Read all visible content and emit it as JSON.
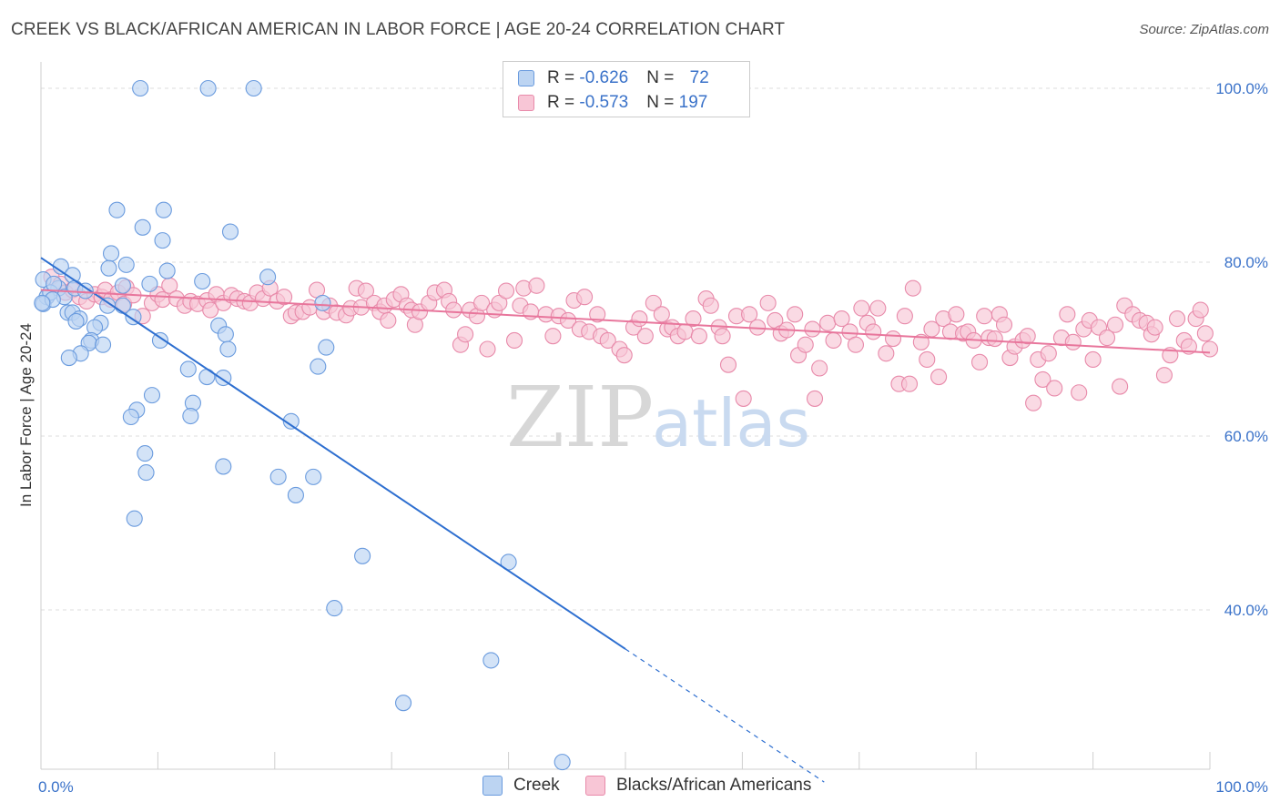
{
  "header": {
    "title": "CREEK VS BLACK/AFRICAN AMERICAN IN LABOR FORCE | AGE 20-24 CORRELATION CHART",
    "source": "Source: ZipAtlas.com"
  },
  "legend": {
    "rows": [
      {
        "r_label": "R = ",
        "r_value": "-0.626",
        "n_label": "N = ",
        "n_value": "72"
      },
      {
        "r_label": "R = ",
        "r_value": "-0.573",
        "n_label": "N = ",
        "n_value": "197"
      }
    ]
  },
  "watermark": {
    "zip": "ZIP",
    "atlas": "atlas"
  },
  "colors": {
    "creek_fill": "#bcd4f2",
    "creek_stroke": "#6a9bde",
    "creek_line": "#2e6fd0",
    "black_fill": "#f8c6d6",
    "black_stroke": "#e88aaa",
    "black_line": "#e8769c",
    "grid": "#dddddd",
    "axis_label": "#3a72c9"
  },
  "chart_data": {
    "type": "scatter",
    "title": "CREEK VS BLACK/AFRICAN AMERICAN IN LABOR FORCE | AGE 20-24 CORRELATION CHART",
    "ylabel": "In Labor Force | Age 20-24",
    "xlabel": "",
    "x_tick_labels": [
      "0.0%",
      "100.0%"
    ],
    "y_tick_labels": [
      "100.0%",
      "80.0%",
      "60.0%",
      "40.0%"
    ],
    "y_ticks": [
      100,
      80,
      60,
      40
    ],
    "xlim": [
      0,
      100
    ],
    "ylim": [
      20,
      102
    ],
    "grid": "horizontal dashed",
    "legend_position": "bottom",
    "series": [
      {
        "name": "Creek",
        "r": -0.626,
        "n": 72,
        "trend": {
          "x0": 0,
          "y0": 80.5,
          "x1": 50,
          "y1": 35.5,
          "dashed_to_x": 67
        },
        "points": [
          [
            8.5,
            100
          ],
          [
            14.3,
            100
          ],
          [
            18.2,
            100
          ],
          [
            6.5,
            86
          ],
          [
            10.5,
            86
          ],
          [
            8.7,
            84
          ],
          [
            10.4,
            82.5
          ],
          [
            16.2,
            83.5
          ],
          [
            6.0,
            81
          ],
          [
            7.3,
            79.7
          ],
          [
            5.8,
            79.3
          ],
          [
            10.8,
            79
          ],
          [
            1.7,
            79.5
          ],
          [
            0.2,
            78
          ],
          [
            1.5,
            77
          ],
          [
            2.7,
            78.5
          ],
          [
            7.0,
            77.3
          ],
          [
            9.3,
            77.5
          ],
          [
            13.8,
            77.8
          ],
          [
            19.4,
            78.3
          ],
          [
            0.5,
            76
          ],
          [
            0.8,
            76.5
          ],
          [
            1.1,
            77.5
          ],
          [
            2.0,
            76
          ],
          [
            2.9,
            77
          ],
          [
            3.8,
            76.7
          ],
          [
            0.2,
            75.2
          ],
          [
            1.0,
            75.7
          ],
          [
            2.3,
            74.2
          ],
          [
            2.7,
            74.2
          ],
          [
            5.7,
            75
          ],
          [
            3.3,
            73.5
          ],
          [
            3.0,
            73.2
          ],
          [
            7.0,
            75
          ],
          [
            7.9,
            73.7
          ],
          [
            5.1,
            73
          ],
          [
            4.6,
            72.5
          ],
          [
            15.2,
            72.7
          ],
          [
            24.1,
            75.3
          ],
          [
            10.2,
            71
          ],
          [
            4.3,
            71
          ],
          [
            4.1,
            70.7
          ],
          [
            5.3,
            70.5
          ],
          [
            15.8,
            71.7
          ],
          [
            3.4,
            69.5
          ],
          [
            2.4,
            69
          ],
          [
            16.0,
            70
          ],
          [
            24.4,
            70.2
          ],
          [
            23.7,
            68
          ],
          [
            12.6,
            67.7
          ],
          [
            14.2,
            66.8
          ],
          [
            15.6,
            66.7
          ],
          [
            9.5,
            64.7
          ],
          [
            8.2,
            63
          ],
          [
            13.0,
            63.8
          ],
          [
            12.8,
            62.3
          ],
          [
            7.7,
            62.2
          ],
          [
            21.4,
            61.7
          ],
          [
            8.9,
            58
          ],
          [
            15.6,
            56.5
          ],
          [
            9.0,
            55.8
          ],
          [
            20.3,
            55.3
          ],
          [
            23.3,
            55.3
          ],
          [
            21.8,
            53.2
          ],
          [
            8.0,
            50.5
          ],
          [
            27.5,
            46.2
          ],
          [
            40.0,
            45.5
          ],
          [
            25.1,
            40.2
          ],
          [
            38.5,
            34.2
          ],
          [
            31.0,
            29.3
          ],
          [
            44.6,
            22.5
          ],
          [
            0.1,
            75.3
          ]
        ]
      },
      {
        "name": "Blacks/African Americans",
        "r": -0.573,
        "n": 197,
        "trend": {
          "x0": 0,
          "y0": 76.8,
          "x1": 100,
          "y1": 69.6
        },
        "points": [
          [
            0.9,
            78.3
          ],
          [
            1.7,
            77.5
          ],
          [
            2.1,
            76.5
          ],
          [
            2.7,
            76.8
          ],
          [
            3.3,
            76
          ],
          [
            3.9,
            75.5
          ],
          [
            4.6,
            76.3
          ],
          [
            5.2,
            76
          ],
          [
            5.5,
            76.8
          ],
          [
            6.0,
            75.7
          ],
          [
            6.6,
            76.5
          ],
          [
            7.1,
            75.2
          ],
          [
            7.3,
            77.1
          ],
          [
            7.9,
            76.2
          ],
          [
            8.7,
            73.8
          ],
          [
            9.5,
            75.3
          ],
          [
            10.0,
            76.3
          ],
          [
            10.4,
            75.7
          ],
          [
            11.0,
            77.3
          ],
          [
            11.6,
            75.8
          ],
          [
            12.3,
            75.0
          ],
          [
            12.8,
            75.5
          ],
          [
            13.4,
            75.2
          ],
          [
            14.2,
            75.6
          ],
          [
            14.5,
            74.5
          ],
          [
            15.0,
            76.3
          ],
          [
            15.6,
            75.3
          ],
          [
            16.3,
            76.2
          ],
          [
            16.8,
            75.8
          ],
          [
            17.4,
            75.5
          ],
          [
            17.9,
            75.3
          ],
          [
            18.5,
            76.5
          ],
          [
            19.0,
            75.8
          ],
          [
            19.6,
            77.0
          ],
          [
            20.2,
            75.5
          ],
          [
            20.8,
            76.0
          ],
          [
            21.4,
            73.8
          ],
          [
            21.8,
            74.2
          ],
          [
            22.4,
            74.3
          ],
          [
            23.0,
            74.8
          ],
          [
            23.6,
            76.8
          ],
          [
            24.2,
            74.3
          ],
          [
            24.7,
            75.0
          ],
          [
            25.3,
            74.2
          ],
          [
            26.1,
            73.9
          ],
          [
            26.5,
            74.7
          ],
          [
            27.0,
            77.0
          ],
          [
            27.4,
            74.8
          ],
          [
            27.8,
            76.7
          ],
          [
            28.5,
            75.3
          ],
          [
            29.0,
            74.3
          ],
          [
            29.4,
            75.0
          ],
          [
            29.7,
            73.3
          ],
          [
            30.2,
            75.7
          ],
          [
            30.8,
            76.3
          ],
          [
            31.3,
            75.0
          ],
          [
            31.7,
            74.5
          ],
          [
            32.0,
            72.8
          ],
          [
            32.4,
            74.3
          ],
          [
            33.2,
            75.3
          ],
          [
            33.7,
            76.5
          ],
          [
            34.5,
            76.8
          ],
          [
            34.9,
            75.5
          ],
          [
            35.3,
            74.5
          ],
          [
            35.9,
            70.5
          ],
          [
            36.3,
            71.7
          ],
          [
            36.7,
            74.5
          ],
          [
            37.3,
            73.8
          ],
          [
            37.7,
            75.3
          ],
          [
            38.2,
            70.0
          ],
          [
            38.8,
            74.5
          ],
          [
            39.2,
            75.3
          ],
          [
            39.8,
            76.7
          ],
          [
            40.5,
            71.0
          ],
          [
            41.0,
            75.0
          ],
          [
            41.3,
            77.0
          ],
          [
            41.9,
            74.3
          ],
          [
            42.4,
            77.3
          ],
          [
            43.2,
            74.0
          ],
          [
            43.8,
            71.5
          ],
          [
            44.3,
            73.8
          ],
          [
            45.1,
            73.3
          ],
          [
            45.6,
            75.6
          ],
          [
            46.1,
            72.3
          ],
          [
            46.5,
            76.0
          ],
          [
            46.9,
            72.0
          ],
          [
            47.6,
            74.0
          ],
          [
            47.9,
            71.5
          ],
          [
            48.5,
            71.0
          ],
          [
            49.5,
            70.0
          ],
          [
            49.9,
            69.3
          ],
          [
            50.7,
            72.5
          ],
          [
            51.2,
            73.5
          ],
          [
            51.7,
            71.5
          ],
          [
            52.4,
            75.3
          ],
          [
            53.1,
            74.0
          ],
          [
            53.6,
            72.3
          ],
          [
            54.0,
            72.5
          ],
          [
            54.5,
            71.5
          ],
          [
            55.1,
            72.0
          ],
          [
            55.8,
            73.5
          ],
          [
            56.3,
            71.5
          ],
          [
            56.9,
            75.8
          ],
          [
            57.3,
            75.0
          ],
          [
            58.0,
            72.5
          ],
          [
            58.3,
            71.5
          ],
          [
            58.8,
            68.2
          ],
          [
            59.5,
            73.8
          ],
          [
            60.1,
            64.3
          ],
          [
            60.6,
            74.0
          ],
          [
            61.3,
            72.5
          ],
          [
            62.2,
            75.3
          ],
          [
            62.8,
            73.3
          ],
          [
            63.3,
            71.8
          ],
          [
            63.8,
            72.2
          ],
          [
            64.5,
            74.0
          ],
          [
            64.8,
            69.3
          ],
          [
            65.4,
            70.5
          ],
          [
            66.0,
            72.3
          ],
          [
            66.2,
            64.3
          ],
          [
            66.6,
            67.8
          ],
          [
            67.3,
            73.0
          ],
          [
            67.8,
            71.0
          ],
          [
            68.5,
            73.5
          ],
          [
            69.2,
            72.0
          ],
          [
            69.7,
            70.5
          ],
          [
            70.2,
            74.7
          ],
          [
            70.7,
            73.0
          ],
          [
            71.2,
            72.0
          ],
          [
            71.6,
            74.7
          ],
          [
            72.3,
            69.5
          ],
          [
            72.9,
            71.2
          ],
          [
            73.4,
            66.0
          ],
          [
            73.9,
            73.8
          ],
          [
            74.3,
            66.0
          ],
          [
            74.6,
            77.0
          ],
          [
            75.3,
            70.8
          ],
          [
            75.8,
            68.8
          ],
          [
            76.2,
            72.3
          ],
          [
            76.8,
            66.8
          ],
          [
            77.2,
            73.5
          ],
          [
            77.8,
            72.0
          ],
          [
            78.3,
            74.0
          ],
          [
            78.9,
            71.8
          ],
          [
            79.3,
            72.0
          ],
          [
            79.8,
            71.0
          ],
          [
            80.3,
            68.5
          ],
          [
            80.7,
            73.8
          ],
          [
            81.1,
            71.3
          ],
          [
            81.6,
            71.2
          ],
          [
            82.0,
            74.0
          ],
          [
            82.4,
            72.8
          ],
          [
            82.9,
            69.0
          ],
          [
            83.3,
            70.3
          ],
          [
            84.0,
            71.0
          ],
          [
            84.4,
            71.5
          ],
          [
            84.9,
            63.8
          ],
          [
            85.3,
            68.8
          ],
          [
            85.7,
            66.5
          ],
          [
            86.2,
            69.5
          ],
          [
            86.7,
            65.5
          ],
          [
            87.3,
            71.3
          ],
          [
            87.8,
            74.0
          ],
          [
            88.3,
            70.8
          ],
          [
            88.8,
            65.0
          ],
          [
            89.2,
            72.3
          ],
          [
            89.7,
            73.3
          ],
          [
            90.0,
            68.8
          ],
          [
            90.5,
            72.5
          ],
          [
            91.2,
            71.3
          ],
          [
            91.9,
            72.8
          ],
          [
            92.3,
            65.7
          ],
          [
            92.7,
            75.0
          ],
          [
            93.4,
            74.0
          ],
          [
            94.0,
            73.3
          ],
          [
            94.6,
            73.0
          ],
          [
            95.0,
            71.7
          ],
          [
            95.3,
            72.5
          ],
          [
            96.1,
            67.0
          ],
          [
            96.6,
            69.3
          ],
          [
            97.2,
            73.5
          ],
          [
            97.8,
            71.0
          ],
          [
            98.2,
            70.3
          ],
          [
            98.8,
            73.5
          ],
          [
            99.2,
            74.5
          ],
          [
            99.6,
            71.8
          ],
          [
            100.0,
            70.0
          ]
        ]
      }
    ]
  }
}
